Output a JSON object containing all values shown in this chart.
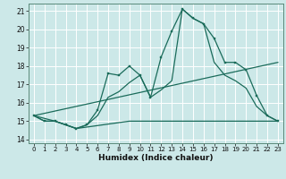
{
  "title": "",
  "xlabel": "Humidex (Indice chaleur)",
  "background_color": "#cce8e8",
  "grid_color": "#b8d8d8",
  "line_color": "#1a6b5a",
  "xlim": [
    -0.5,
    23.5
  ],
  "ylim": [
    13.8,
    21.4
  ],
  "yticks": [
    14,
    15,
    16,
    17,
    18,
    19,
    20,
    21
  ],
  "xticks": [
    0,
    1,
    2,
    3,
    4,
    5,
    6,
    7,
    8,
    9,
    10,
    11,
    12,
    13,
    14,
    15,
    16,
    17,
    18,
    19,
    20,
    21,
    22,
    23
  ],
  "lines": [
    {
      "x": [
        0,
        1,
        2,
        3,
        4,
        5,
        6,
        7,
        8,
        9,
        10,
        11,
        12,
        13,
        14,
        15,
        16,
        17,
        18,
        19,
        20,
        21,
        22,
        23
      ],
      "y": [
        15.3,
        15.0,
        15.0,
        14.8,
        14.6,
        14.8,
        15.6,
        17.6,
        17.5,
        18.0,
        17.5,
        16.3,
        18.5,
        19.9,
        21.1,
        20.6,
        20.3,
        19.5,
        18.2,
        18.2,
        17.8,
        16.4,
        15.3,
        15.0
      ],
      "markers": true
    },
    {
      "x": [
        0,
        1,
        2,
        3,
        4,
        5,
        6,
        7,
        8,
        9,
        10,
        11,
        12,
        13,
        14,
        15,
        16,
        17,
        18,
        19,
        20,
        21,
        22,
        23
      ],
      "y": [
        15.3,
        15.0,
        15.0,
        14.8,
        14.6,
        14.8,
        15.3,
        16.3,
        16.6,
        17.1,
        17.5,
        16.3,
        16.7,
        17.2,
        21.1,
        20.6,
        20.3,
        18.2,
        17.5,
        17.2,
        16.8,
        15.8,
        15.3,
        15.0
      ],
      "markers": false
    },
    {
      "x": [
        0,
        2,
        3,
        4,
        9,
        22,
        23
      ],
      "y": [
        15.3,
        15.0,
        14.8,
        14.6,
        15.0,
        15.0,
        15.0
      ],
      "markers": false
    },
    {
      "x": [
        0,
        23
      ],
      "y": [
        15.3,
        18.2
      ],
      "markers": false
    }
  ]
}
